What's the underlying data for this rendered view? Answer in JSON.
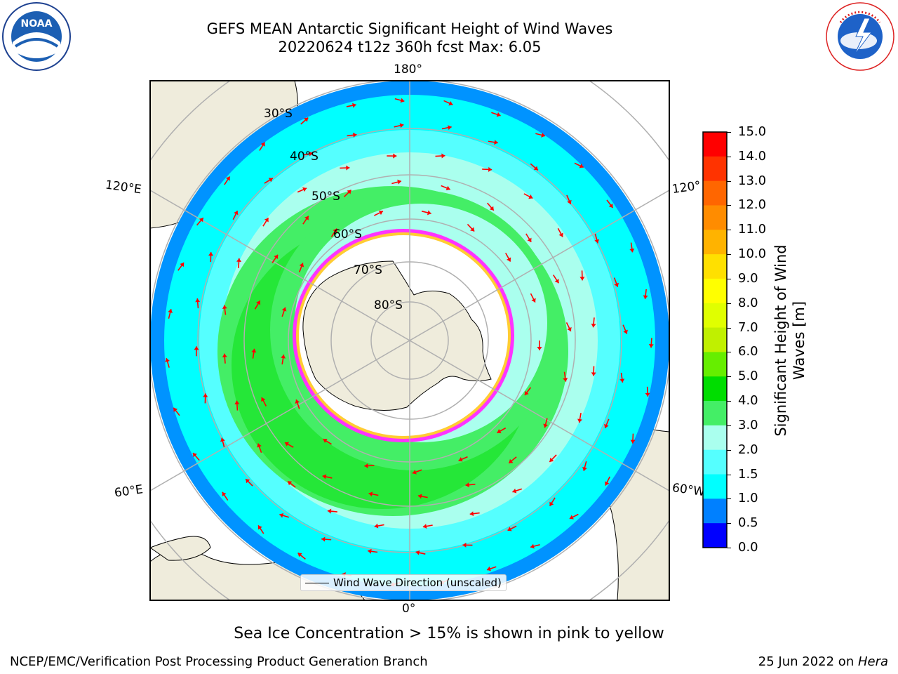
{
  "header": {
    "title_line1": "GEFS MEAN Antarctic Significant Height of Wind Waves",
    "title_line2": "20220624 t12z 360h fcst   Max: 6.05"
  },
  "logos": {
    "noaa_text": "NOAA",
    "nws_text": "NATIONAL WEATHER SERVICE"
  },
  "map": {
    "lon_labels": {
      "top": "180°",
      "bottom": "0°",
      "upper_left": "120°E",
      "lower_left": "60°E",
      "upper_right": "120°",
      "lower_right": "60°W"
    },
    "lat_labels": [
      "30°S",
      "40°S",
      "50°S",
      "60°S",
      "70°S",
      "80°S"
    ],
    "legend_label": "Wind Wave Direction (unscaled)",
    "colors": {
      "land": "#efecdc",
      "ocean_outside": "#ffffff",
      "ice_edge_pink": "#ff33ff",
      "ice_edge_yellow": "#ffcc33",
      "arrow": "#ff0000",
      "grid": "#b0b0b0"
    }
  },
  "colorbar": {
    "title": "Significant Height of Wind Waves [m]",
    "title_line1": "Significant Height of Wind",
    "title_line2": "Waves [m]",
    "tick_labels": [
      "15.0",
      "14.0",
      "13.0",
      "12.0",
      "11.0",
      "10.0",
      "9.0",
      "8.0",
      "7.0",
      "6.0",
      "5.0",
      "4.0",
      "3.0",
      "2.0",
      "1.5",
      "1.0",
      "0.5",
      "0.0"
    ],
    "colors_top_to_bottom": [
      "#ff0000",
      "#ff2a00",
      "#ff5500",
      "#ff8000",
      "#ff9900",
      "#ffb300",
      "#ffdd00",
      "#ffff00",
      "#e6ff00",
      "#ccff00",
      "#99ff00",
      "#55ee00",
      "#00dd00",
      "#44ee66",
      "#aaffee",
      "#55ffff",
      "#00ffff",
      "#0080ff",
      "#0000ff"
    ],
    "bins_top_to_bottom": [
      {
        "from": 14.0,
        "to": 15.0,
        "color": "#ff0000"
      },
      {
        "from": 13.0,
        "to": 14.0,
        "color": "#ff3300"
      },
      {
        "from": 12.0,
        "to": 13.0,
        "color": "#ff6600"
      },
      {
        "from": 11.0,
        "to": 12.0,
        "color": "#ff8c00"
      },
      {
        "from": 10.0,
        "to": 11.0,
        "color": "#ffb300"
      },
      {
        "from": 9.0,
        "to": 10.0,
        "color": "#ffe000"
      },
      {
        "from": 8.0,
        "to": 9.0,
        "color": "#ffff00"
      },
      {
        "from": 7.0,
        "to": 8.0,
        "color": "#e0ff00"
      },
      {
        "from": 6.0,
        "to": 7.0,
        "color": "#c0f000"
      },
      {
        "from": 5.0,
        "to": 6.0,
        "color": "#66ee00"
      },
      {
        "from": 4.0,
        "to": 5.0,
        "color": "#00dd00"
      },
      {
        "from": 3.0,
        "to": 4.0,
        "color": "#44ee66"
      },
      {
        "from": 2.0,
        "to": 3.0,
        "color": "#aaffee"
      },
      {
        "from": 1.5,
        "to": 2.0,
        "color": "#55ffff"
      },
      {
        "from": 1.0,
        "to": 1.5,
        "color": "#00ffff"
      },
      {
        "from": 0.5,
        "to": 1.0,
        "color": "#0080ff"
      },
      {
        "from": 0.0,
        "to": 0.5,
        "color": "#0000ff"
      }
    ]
  },
  "footer": {
    "sea_ice_note": "Sea Ice Concentration > 15% is shown in pink to yellow",
    "left": "NCEP/EMC/Verification Post Processing Product Generation Branch",
    "right_date": "25 Jun 2022 on ",
    "right_host": "Hera"
  }
}
